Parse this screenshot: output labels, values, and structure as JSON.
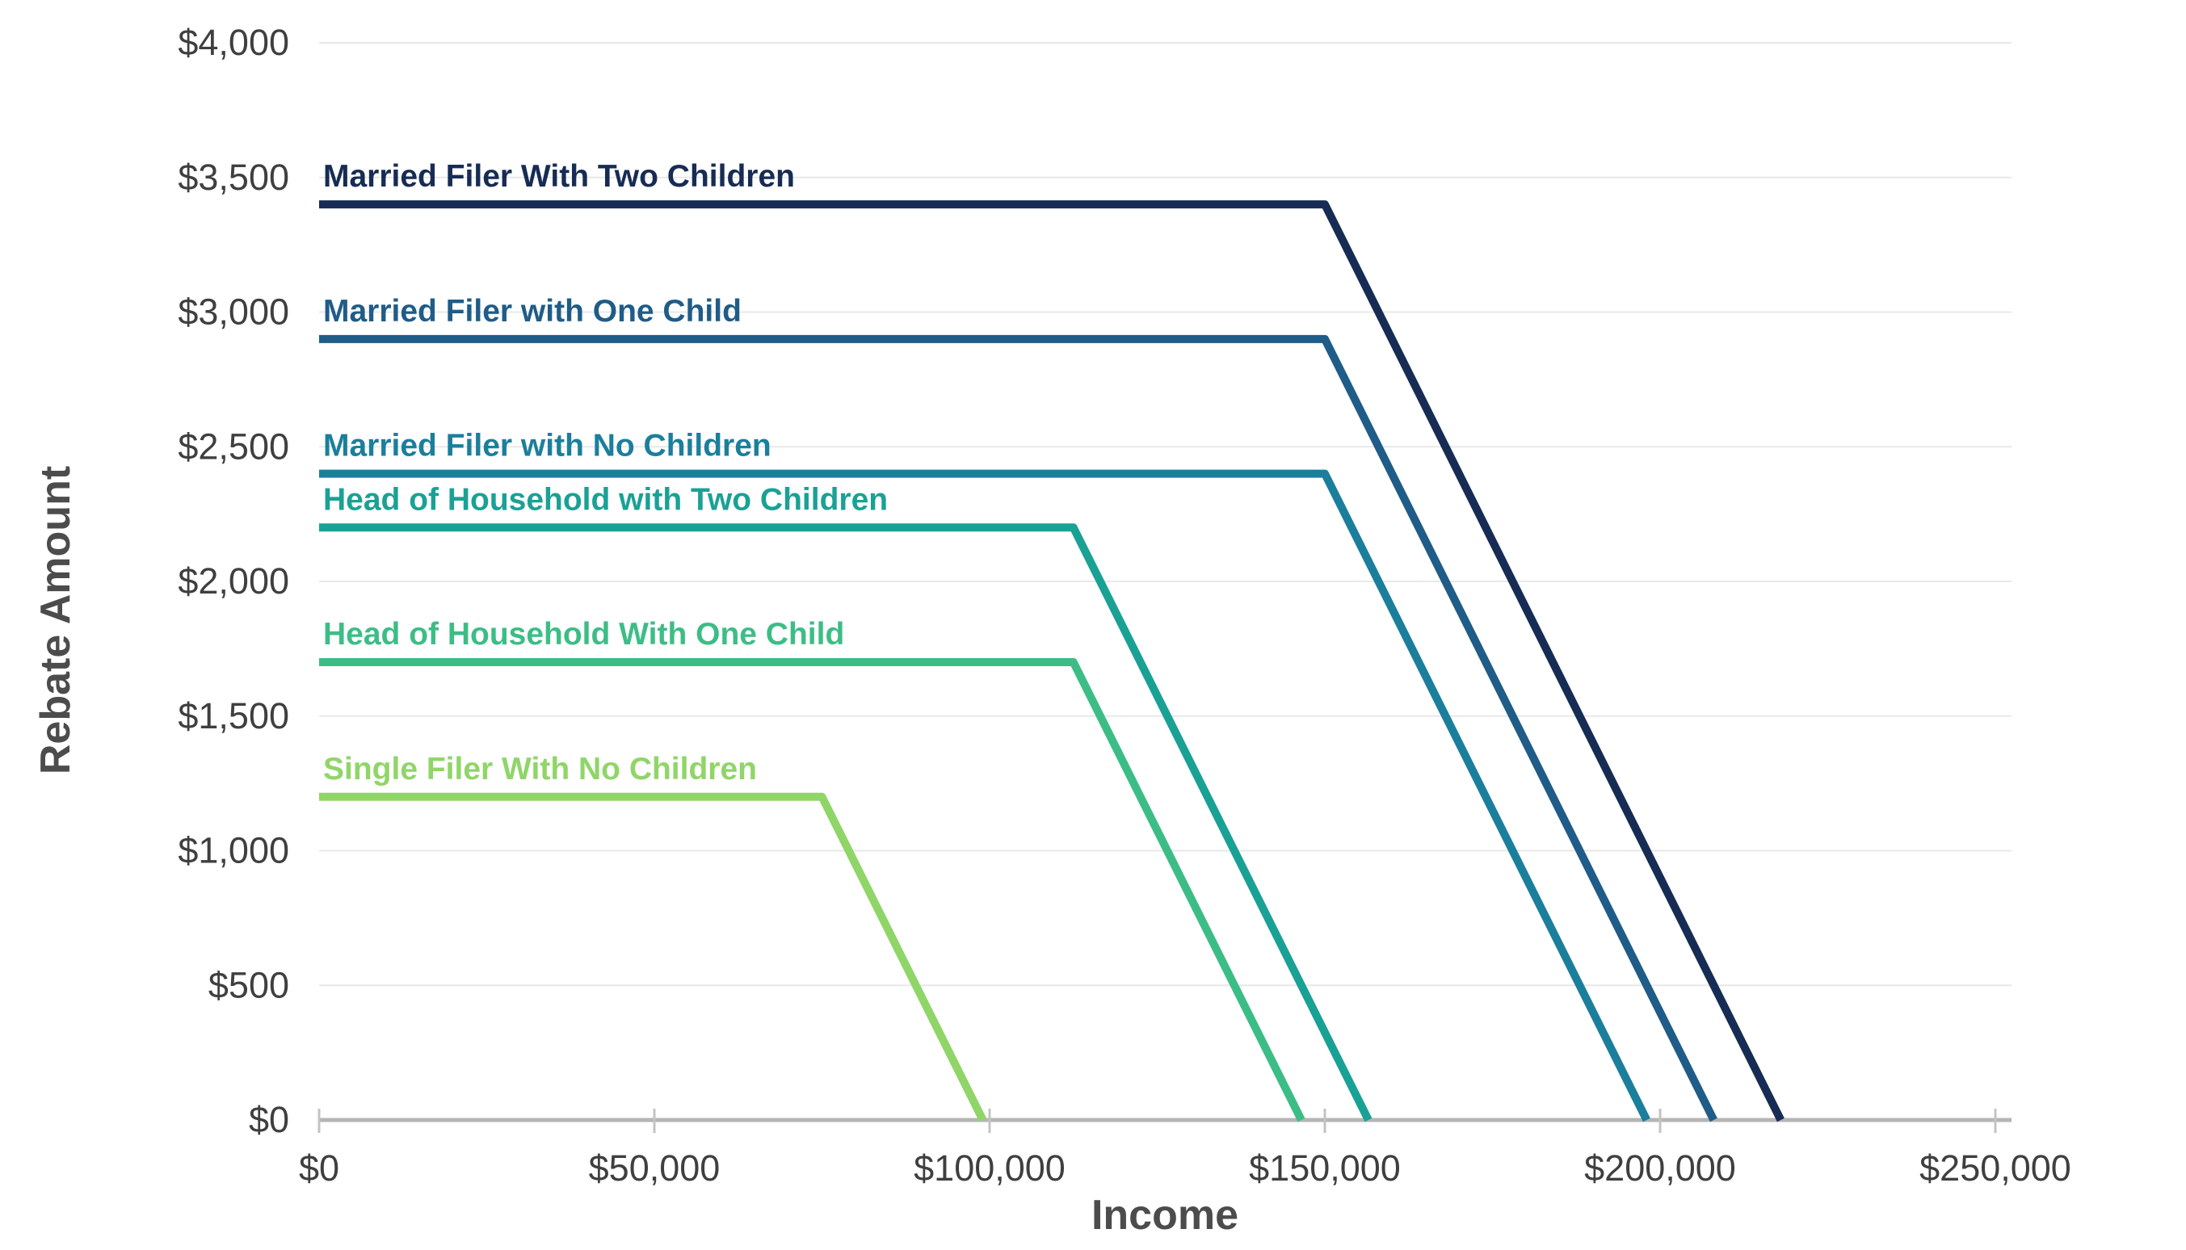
{
  "chart_data": {
    "type": "line",
    "title": "",
    "xlabel": "Income",
    "ylabel": "Rebate Amount",
    "xlim": [
      0,
      250000
    ],
    "ylim": [
      0,
      4000
    ],
    "grid": "horizontal-only",
    "legend": "inline-colored-labels-above-lines",
    "x_ticks": [
      {
        "value": 0,
        "label": "$0"
      },
      {
        "value": 50000,
        "label": "$50,000"
      },
      {
        "value": 100000,
        "label": "$100,000"
      },
      {
        "value": 150000,
        "label": "$150,000"
      },
      {
        "value": 200000,
        "label": "$200,000"
      },
      {
        "value": 250000,
        "label": "$250,000"
      }
    ],
    "y_ticks": [
      {
        "value": 0,
        "label": "$0"
      },
      {
        "value": 500,
        "label": "$500"
      },
      {
        "value": 1000,
        "label": "$1,000"
      },
      {
        "value": 1500,
        "label": "$1,500"
      },
      {
        "value": 2000,
        "label": "$2,000"
      },
      {
        "value": 2500,
        "label": "$2,500"
      },
      {
        "value": 3000,
        "label": "$3,000"
      },
      {
        "value": 3500,
        "label": "$3,500"
      },
      {
        "value": 4000,
        "label": "$4,000"
      }
    ],
    "series": [
      {
        "name": "Married Filer With Two Children",
        "color": "#172c54",
        "rebate_amount": 3400,
        "phaseout_start_income": 150000,
        "phaseout_end_income": 218000,
        "points": [
          [
            0,
            3400
          ],
          [
            150000,
            3400
          ],
          [
            218000,
            0
          ]
        ]
      },
      {
        "name": "Married Filer with One Child",
        "color": "#1f5c88",
        "rebate_amount": 2900,
        "phaseout_start_income": 150000,
        "phaseout_end_income": 208000,
        "points": [
          [
            0,
            2900
          ],
          [
            150000,
            2900
          ],
          [
            208000,
            0
          ]
        ]
      },
      {
        "name": "Married Filer with No Children",
        "color": "#1b7f9c",
        "rebate_amount": 2400,
        "phaseout_start_income": 150000,
        "phaseout_end_income": 198000,
        "points": [
          [
            0,
            2400
          ],
          [
            150000,
            2400
          ],
          [
            198000,
            0
          ]
        ]
      },
      {
        "name": "Head of Household with Two Children",
        "color": "#1aa195",
        "rebate_amount": 2200,
        "phaseout_start_income": 112500,
        "phaseout_end_income": 156500,
        "points": [
          [
            0,
            2200
          ],
          [
            112500,
            2200
          ],
          [
            156500,
            0
          ]
        ]
      },
      {
        "name": "Head of Household With One Child",
        "color": "#3dbd86",
        "rebate_amount": 1700,
        "phaseout_start_income": 112500,
        "phaseout_end_income": 146500,
        "points": [
          [
            0,
            1700
          ],
          [
            112500,
            1700
          ],
          [
            146500,
            0
          ]
        ]
      },
      {
        "name": "Single Filer With No Children",
        "color": "#90d568",
        "rebate_amount": 1200,
        "phaseout_start_income": 75000,
        "phaseout_end_income": 99000,
        "points": [
          [
            0,
            1200
          ],
          [
            75000,
            1200
          ],
          [
            99000,
            0
          ]
        ]
      }
    ]
  },
  "colors": {
    "axis_line": "#b5b5b5",
    "tick_mark": "#c3c3c3",
    "gridline": "#e8e8e8",
    "tick_text": "#3f3f3f",
    "axis_title_text": "#4c4c4c",
    "background": "#ffffff"
  }
}
